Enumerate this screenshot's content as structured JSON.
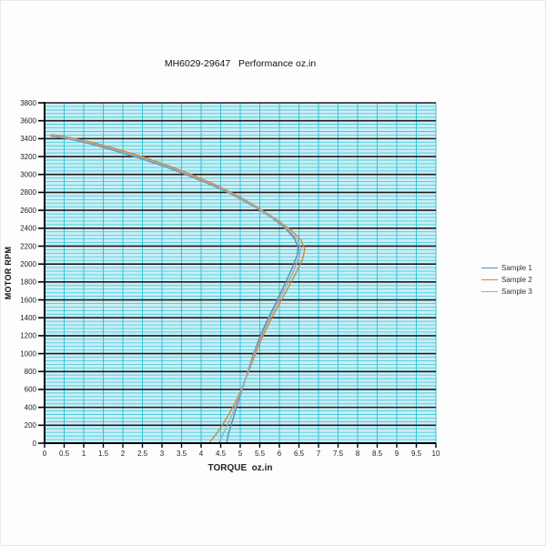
{
  "window": {
    "title": "MH6029-29647   Performance oz.in"
  },
  "chart_data": {
    "type": "line",
    "title": "MH6029-29647   Performance oz.in",
    "xlabel": "TORQUE  oz.in",
    "ylabel": "MOTOR RPM",
    "xlim": [
      0,
      10
    ],
    "ylim": [
      0,
      3800
    ],
    "x_ticks": [
      0,
      0.5,
      1,
      1.5,
      2,
      2.5,
      3,
      3.5,
      4,
      4.5,
      5,
      5.5,
      6,
      6.5,
      7,
      7.5,
      8,
      8.5,
      9,
      9.5,
      10
    ],
    "x_tick_labels": [
      "0",
      "0.5",
      "1",
      "1.5",
      "2",
      "2.5",
      "3",
      "3.5",
      "4",
      "4.5",
      "5",
      "5.5",
      "6",
      "6.5",
      "7",
      "7.5",
      "8",
      "8.5",
      "9",
      "9.5",
      "10"
    ],
    "y_ticks": [
      0,
      200,
      400,
      600,
      800,
      1000,
      1200,
      1400,
      1600,
      1800,
      2000,
      2200,
      2400,
      2600,
      2800,
      3000,
      3200,
      3400,
      3600,
      3800
    ],
    "y_tick_labels": [
      "0",
      "200",
      "400",
      "600",
      "800",
      "1000",
      "1200",
      "1400",
      "1600",
      "1800",
      "2000",
      "2200",
      "2400",
      "2600",
      "2800",
      "3000",
      "3200",
      "3400",
      "3600",
      "3800"
    ],
    "y_minor_step": 40,
    "x_minor_step": 0.5,
    "grid": true,
    "legend_position": "right",
    "colors": {
      "plot_bg": "#cdeef5",
      "minor_grid_h": "#46cde0",
      "minor_grid_v": "#35c3d9",
      "major_grid": "#1b1b1b",
      "axis": "#000000",
      "tick_text": "#222222"
    },
    "series": [
      {
        "name": "Sample 1",
        "color": "#5590b4",
        "points": [
          [
            0.15,
            3430
          ],
          [
            0.6,
            3400
          ],
          [
            1.2,
            3340
          ],
          [
            1.8,
            3265
          ],
          [
            2.4,
            3185
          ],
          [
            3.0,
            3100
          ],
          [
            3.6,
            3000
          ],
          [
            4.2,
            2895
          ],
          [
            4.8,
            2775
          ],
          [
            5.3,
            2655
          ],
          [
            5.8,
            2520
          ],
          [
            6.15,
            2400
          ],
          [
            6.38,
            2290
          ],
          [
            6.48,
            2190
          ],
          [
            6.45,
            2090
          ],
          [
            6.3,
            1930
          ],
          [
            6.1,
            1740
          ],
          [
            5.9,
            1560
          ],
          [
            5.72,
            1400
          ],
          [
            5.55,
            1240
          ],
          [
            5.42,
            1090
          ],
          [
            5.3,
            950
          ],
          [
            5.2,
            810
          ],
          [
            5.1,
            670
          ],
          [
            5.0,
            530
          ],
          [
            4.9,
            390
          ],
          [
            4.8,
            250
          ],
          [
            4.7,
            110
          ],
          [
            4.65,
            0
          ]
        ]
      },
      {
        "name": "Sample 2",
        "color": "#d1883f",
        "points": [
          [
            0.18,
            3445
          ],
          [
            0.7,
            3408
          ],
          [
            1.3,
            3350
          ],
          [
            1.9,
            3278
          ],
          [
            2.5,
            3198
          ],
          [
            3.1,
            3108
          ],
          [
            3.7,
            3008
          ],
          [
            4.3,
            2898
          ],
          [
            4.9,
            2772
          ],
          [
            5.4,
            2645
          ],
          [
            5.9,
            2505
          ],
          [
            6.3,
            2380
          ],
          [
            6.55,
            2270
          ],
          [
            6.65,
            2170
          ],
          [
            6.6,
            2060
          ],
          [
            6.42,
            1900
          ],
          [
            6.2,
            1715
          ],
          [
            5.98,
            1540
          ],
          [
            5.78,
            1375
          ],
          [
            5.6,
            1215
          ],
          [
            5.45,
            1065
          ],
          [
            5.32,
            925
          ],
          [
            5.2,
            785
          ],
          [
            5.07,
            645
          ],
          [
            4.93,
            505
          ],
          [
            4.77,
            370
          ],
          [
            4.6,
            240
          ],
          [
            4.4,
            110
          ],
          [
            4.2,
            0
          ]
        ]
      },
      {
        "name": "Sample 3",
        "color": "#a6abb0",
        "points": [
          [
            0.16,
            3436
          ],
          [
            0.65,
            3403
          ],
          [
            1.25,
            3344
          ],
          [
            1.85,
            3270
          ],
          [
            2.45,
            3190
          ],
          [
            3.05,
            3102
          ],
          [
            3.65,
            3002
          ],
          [
            4.25,
            2895
          ],
          [
            4.85,
            2772
          ],
          [
            5.35,
            2648
          ],
          [
            5.85,
            2510
          ],
          [
            6.22,
            2388
          ],
          [
            6.45,
            2278
          ],
          [
            6.55,
            2178
          ],
          [
            6.5,
            2072
          ],
          [
            6.35,
            1912
          ],
          [
            6.14,
            1725
          ],
          [
            5.93,
            1548
          ],
          [
            5.74,
            1386
          ],
          [
            5.57,
            1226
          ],
          [
            5.43,
            1076
          ],
          [
            5.3,
            935
          ],
          [
            5.19,
            795
          ],
          [
            5.08,
            655
          ],
          [
            4.97,
            515
          ],
          [
            4.85,
            380
          ],
          [
            4.72,
            250
          ],
          [
            4.58,
            115
          ],
          [
            4.45,
            0
          ]
        ]
      }
    ]
  }
}
